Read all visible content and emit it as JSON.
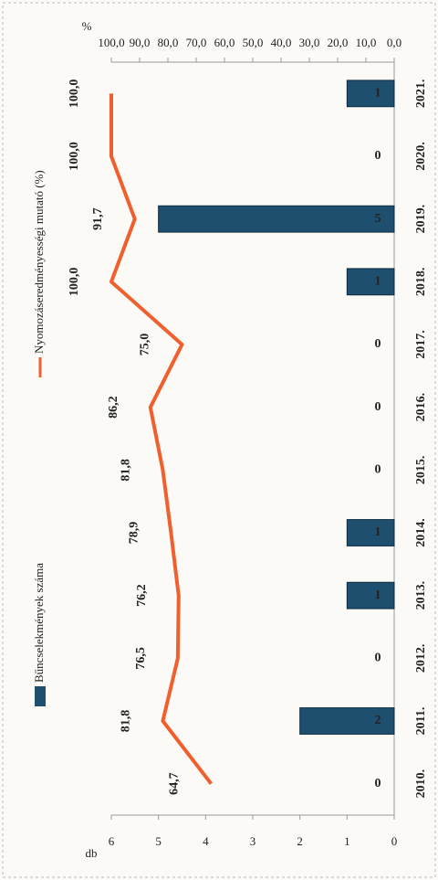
{
  "chart_data": {
    "type": "combo",
    "categories": [
      "2010.",
      "2011.",
      "2012.",
      "2013.",
      "2014.",
      "2015.",
      "2016.",
      "2017.",
      "2018.",
      "2019.",
      "2020.",
      "2021."
    ],
    "series": [
      {
        "name": "Bűncselekmények száma",
        "type": "bar",
        "color": "#1f4f6f",
        "values": [
          0,
          2,
          0,
          1,
          1,
          0,
          0,
          0,
          1,
          5,
          0,
          1
        ]
      },
      {
        "name": "Nyomozáseredményességi mutató (%)",
        "type": "line",
        "axis": "y2",
        "color": "#f0602e",
        "values": [
          64.7,
          81.8,
          76.5,
          76.2,
          78.9,
          81.8,
          86.2,
          75.0,
          100.0,
          91.7,
          100.0,
          100.0
        ],
        "value_labels": [
          "64,7",
          "81,8",
          "76,5",
          "76,2",
          "78,9",
          "81,8",
          "86,2",
          "75,0",
          "100,0",
          "91,7",
          "100,0",
          "100,0"
        ]
      }
    ],
    "ylabel": "db",
    "ylim": [
      0,
      6
    ],
    "yticks": [
      0,
      1,
      2,
      3,
      4,
      5,
      6
    ],
    "y2label": "%",
    "y2lim": [
      0,
      100
    ],
    "y2ticks": [
      {
        "value": 0,
        "label": "0,0"
      },
      {
        "value": 10,
        "label": "10,0"
      },
      {
        "value": 20,
        "label": "20,0"
      },
      {
        "value": 30,
        "label": "30,0"
      },
      {
        "value": 40,
        "label": "40,0"
      },
      {
        "value": 50,
        "label": "50,0"
      },
      {
        "value": 60,
        "label": "60,0"
      },
      {
        "value": 70,
        "label": "70,0"
      },
      {
        "value": 80,
        "label": "80,0"
      },
      {
        "value": 90,
        "label": "90,0"
      },
      {
        "value": 100,
        "label": "100,0"
      }
    ],
    "legend": "top",
    "grid": false
  }
}
